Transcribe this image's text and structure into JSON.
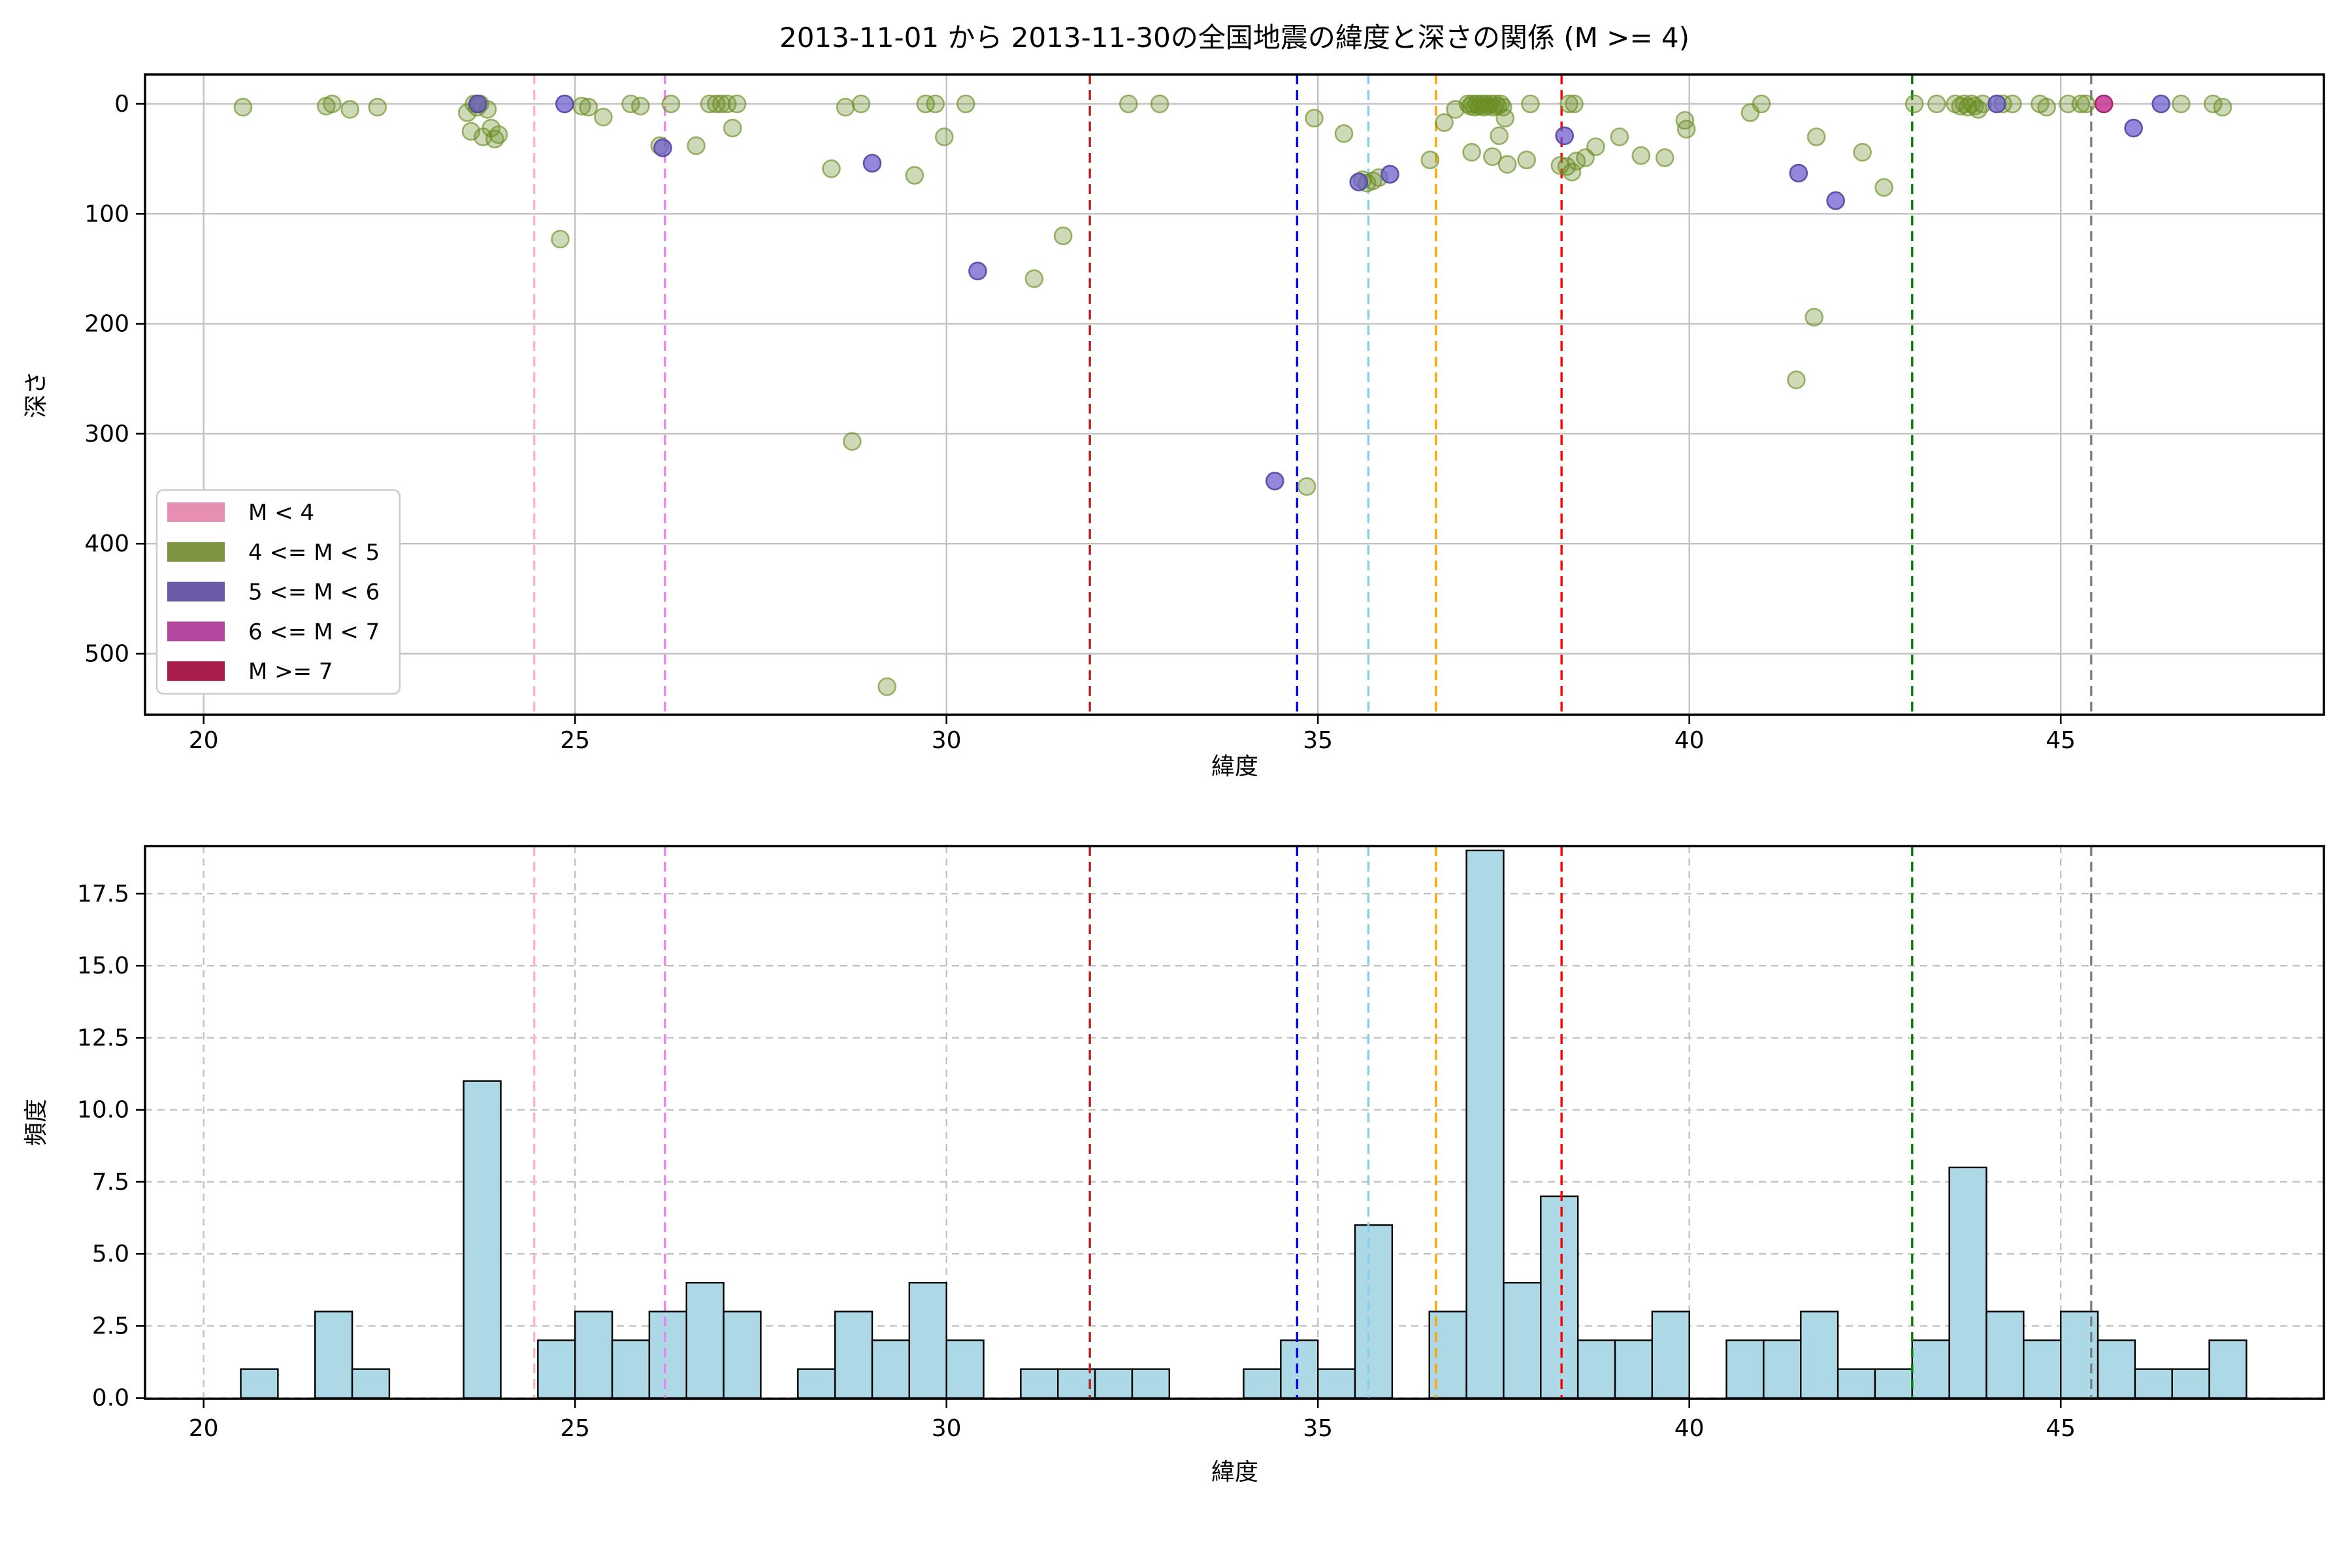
{
  "title": "2013-11-01 から 2013-11-30の全国地震の緯度と深さの関係 (M >= 4)",
  "axes": {
    "x_label": "緯度",
    "top_y_label": "深さ",
    "bottom_y_label": "頻度"
  },
  "legend": {
    "items": [
      {
        "label": "M < 4",
        "color": "#e78fb3"
      },
      {
        "label": "4 <= M < 5",
        "color": "#7d9440"
      },
      {
        "label": "5 <= M < 6",
        "color": "#6a5aa8"
      },
      {
        "label": "6 <= M < 7",
        "color": "#b4489e"
      },
      {
        "label": "M >= 7",
        "color": "#a81e4a"
      }
    ]
  },
  "vlines": [
    {
      "x": 24.45,
      "color": "#ffb6c1",
      "name": "pink-line"
    },
    {
      "x": 26.21,
      "color": "#ee82ee",
      "name": "violet-line"
    },
    {
      "x": 31.93,
      "color": "#b22222",
      "name": "firebrick-line"
    },
    {
      "x": 34.72,
      "color": "#0000ff",
      "name": "blue-line"
    },
    {
      "x": 35.68,
      "color": "#87ceeb",
      "name": "skyblue-line"
    },
    {
      "x": 36.59,
      "color": "#ffa500",
      "name": "orange-line"
    },
    {
      "x": 38.28,
      "color": "#ff0000",
      "name": "red-line"
    },
    {
      "x": 43.0,
      "color": "#008000",
      "name": "green-line"
    },
    {
      "x": 45.41,
      "color": "#808080",
      "name": "gray-line"
    }
  ],
  "chart_data": [
    {
      "type": "scatter",
      "title": "2013-11-01 から 2013-11-30の全国地震の緯度と深さの関係 (M >= 4)",
      "xlabel": "緯度",
      "ylabel": "深さ",
      "xlim": [
        19.2,
        48.55
      ],
      "ylim": [
        -27,
        556
      ],
      "y_inverted": true,
      "grid": "solid",
      "xticks": [
        20,
        25,
        30,
        35,
        40,
        45
      ],
      "xtick_labels": [
        "20",
        "25",
        "30",
        "35",
        "40",
        "45"
      ],
      "yticks": [
        0,
        100,
        200,
        300,
        400,
        500
      ],
      "ytick_labels": [
        "0",
        "100",
        "200",
        "300",
        "400",
        "500"
      ],
      "legend_position": "lower left",
      "series": [
        {
          "name": "M < 4",
          "fill": "rgba(225,120,160,0.35)",
          "stroke": "rgba(205,95,140,0.7)",
          "points": []
        },
        {
          "name": "4 <= M < 5",
          "fill": "rgba(107,142,35,0.33)",
          "stroke": "rgba(107,142,35,0.65)",
          "points": [
            [
              20.53,
              3
            ],
            [
              21.65,
              2
            ],
            [
              21.73,
              0
            ],
            [
              21.97,
              5
            ],
            [
              22.34,
              3
            ],
            [
              23.55,
              8
            ],
            [
              23.6,
              25
            ],
            [
              23.64,
              0
            ],
            [
              23.68,
              3
            ],
            [
              23.72,
              0
            ],
            [
              23.76,
              30
            ],
            [
              23.82,
              5
            ],
            [
              23.87,
              22
            ],
            [
              23.92,
              32
            ],
            [
              23.97,
              28
            ],
            [
              24.8,
              123
            ],
            [
              25.09,
              2
            ],
            [
              25.18,
              3
            ],
            [
              25.38,
              12
            ],
            [
              25.75,
              0
            ],
            [
              25.88,
              2
            ],
            [
              26.14,
              38
            ],
            [
              26.29,
              0
            ],
            [
              26.63,
              38
            ],
            [
              26.81,
              0
            ],
            [
              26.9,
              0
            ],
            [
              26.97,
              0
            ],
            [
              27.05,
              0
            ],
            [
              27.12,
              22
            ],
            [
              27.18,
              0
            ],
            [
              28.45,
              59
            ],
            [
              28.64,
              3
            ],
            [
              28.73,
              307
            ],
            [
              28.85,
              0
            ],
            [
              29.2,
              530
            ],
            [
              29.57,
              65
            ],
            [
              29.72,
              0
            ],
            [
              29.85,
              0
            ],
            [
              29.97,
              30
            ],
            [
              30.26,
              0
            ],
            [
              31.18,
              159
            ],
            [
              31.57,
              120
            ],
            [
              32.45,
              0
            ],
            [
              32.87,
              0
            ],
            [
              34.85,
              348
            ],
            [
              34.95,
              13
            ],
            [
              35.35,
              27
            ],
            [
              35.6,
              69
            ],
            [
              35.66,
              72
            ],
            [
              35.74,
              70
            ],
            [
              35.82,
              67
            ],
            [
              36.51,
              51
            ],
            [
              36.7,
              17
            ],
            [
              36.85,
              5
            ],
            [
              37.02,
              0
            ],
            [
              37.05,
              2
            ],
            [
              37.07,
              44
            ],
            [
              37.08,
              0
            ],
            [
              37.11,
              3
            ],
            [
              37.14,
              0
            ],
            [
              37.17,
              2
            ],
            [
              37.2,
              0
            ],
            [
              37.23,
              3
            ],
            [
              37.26,
              0
            ],
            [
              37.29,
              2
            ],
            [
              37.32,
              0
            ],
            [
              37.35,
              48
            ],
            [
              37.36,
              3
            ],
            [
              37.39,
              0
            ],
            [
              37.42,
              2
            ],
            [
              37.44,
              29
            ],
            [
              37.46,
              0
            ],
            [
              37.49,
              3
            ],
            [
              37.52,
              13
            ],
            [
              37.55,
              55
            ],
            [
              37.81,
              51
            ],
            [
              37.86,
              0
            ],
            [
              38.26,
              56
            ],
            [
              38.35,
              57
            ],
            [
              38.38,
              0
            ],
            [
              38.42,
              62
            ],
            [
              38.45,
              0
            ],
            [
              38.48,
              52
            ],
            [
              38.6,
              49
            ],
            [
              38.74,
              39
            ],
            [
              39.06,
              30
            ],
            [
              39.35,
              47
            ],
            [
              39.67,
              49
            ],
            [
              39.94,
              15
            ],
            [
              39.96,
              23
            ],
            [
              40.82,
              8
            ],
            [
              40.97,
              0
            ],
            [
              41.44,
              251
            ],
            [
              41.68,
              194
            ],
            [
              41.71,
              30
            ],
            [
              42.33,
              44
            ],
            [
              42.62,
              76
            ],
            [
              43.03,
              0
            ],
            [
              43.33,
              0
            ],
            [
              43.58,
              0
            ],
            [
              43.65,
              2
            ],
            [
              43.7,
              0
            ],
            [
              43.75,
              3
            ],
            [
              43.8,
              0
            ],
            [
              43.84,
              2
            ],
            [
              43.89,
              5
            ],
            [
              43.95,
              0
            ],
            [
              44.22,
              0
            ],
            [
              44.35,
              0
            ],
            [
              44.72,
              0
            ],
            [
              44.81,
              3
            ],
            [
              45.1,
              0
            ],
            [
              45.27,
              0
            ],
            [
              45.34,
              0
            ],
            [
              46.62,
              0
            ],
            [
              47.05,
              0
            ],
            [
              47.18,
              3
            ]
          ]
        },
        {
          "name": "5 <= M < 6",
          "fill": "rgba(106,90,205,0.72)",
          "stroke": "rgba(84,70,160,0.9)",
          "points": [
            [
              23.69,
              0
            ],
            [
              24.86,
              0
            ],
            [
              26.18,
              40
            ],
            [
              29.0,
              54
            ],
            [
              30.42,
              152
            ],
            [
              34.42,
              343
            ],
            [
              35.55,
              71
            ],
            [
              35.97,
              64
            ],
            [
              38.32,
              29
            ],
            [
              41.47,
              63
            ],
            [
              41.97,
              88
            ],
            [
              44.14,
              0
            ],
            [
              45.98,
              22
            ],
            [
              46.35,
              0
            ]
          ]
        },
        {
          "name": "6 <= M < 7",
          "fill": "rgba(197,54,146,0.85)",
          "stroke": "rgba(160,35,115,0.95)",
          "points": [
            [
              45.58,
              0
            ]
          ]
        },
        {
          "name": "M >= 7",
          "fill": "rgba(168,30,74,0.9)",
          "stroke": "rgba(130,20,55,0.95)",
          "points": []
        }
      ]
    },
    {
      "type": "bar",
      "xlabel": "緯度",
      "ylabel": "頻度",
      "xlim": [
        19.2,
        48.55
      ],
      "ylim": [
        0,
        19.15
      ],
      "grid": "dashed",
      "bin_start": 20.5,
      "bin_width": 0.5,
      "values": [
        1,
        0,
        3,
        1,
        0,
        0,
        11,
        0,
        2,
        3,
        2,
        3,
        4,
        3,
        0,
        1,
        3,
        2,
        4,
        2,
        0,
        1,
        1,
        1,
        1,
        0,
        0,
        1,
        2,
        1,
        6,
        0,
        3,
        19,
        4,
        7,
        2,
        2,
        3,
        0,
        2,
        2,
        3,
        1,
        1,
        2,
        8,
        3,
        2,
        3,
        2,
        1,
        1,
        2
      ],
      "bar_color": "#add8e6",
      "edge_color": "#000000",
      "xticks": [
        20,
        25,
        30,
        35,
        40,
        45
      ],
      "xtick_labels": [
        "20",
        "25",
        "30",
        "35",
        "40",
        "45"
      ],
      "yticks": [
        0,
        2.5,
        5,
        7.5,
        10,
        12.5,
        15,
        17.5
      ],
      "ytick_labels": [
        "0.0",
        "2.5",
        "5.0",
        "7.5",
        "10.0",
        "12.5",
        "15.0",
        "17.5"
      ]
    }
  ]
}
